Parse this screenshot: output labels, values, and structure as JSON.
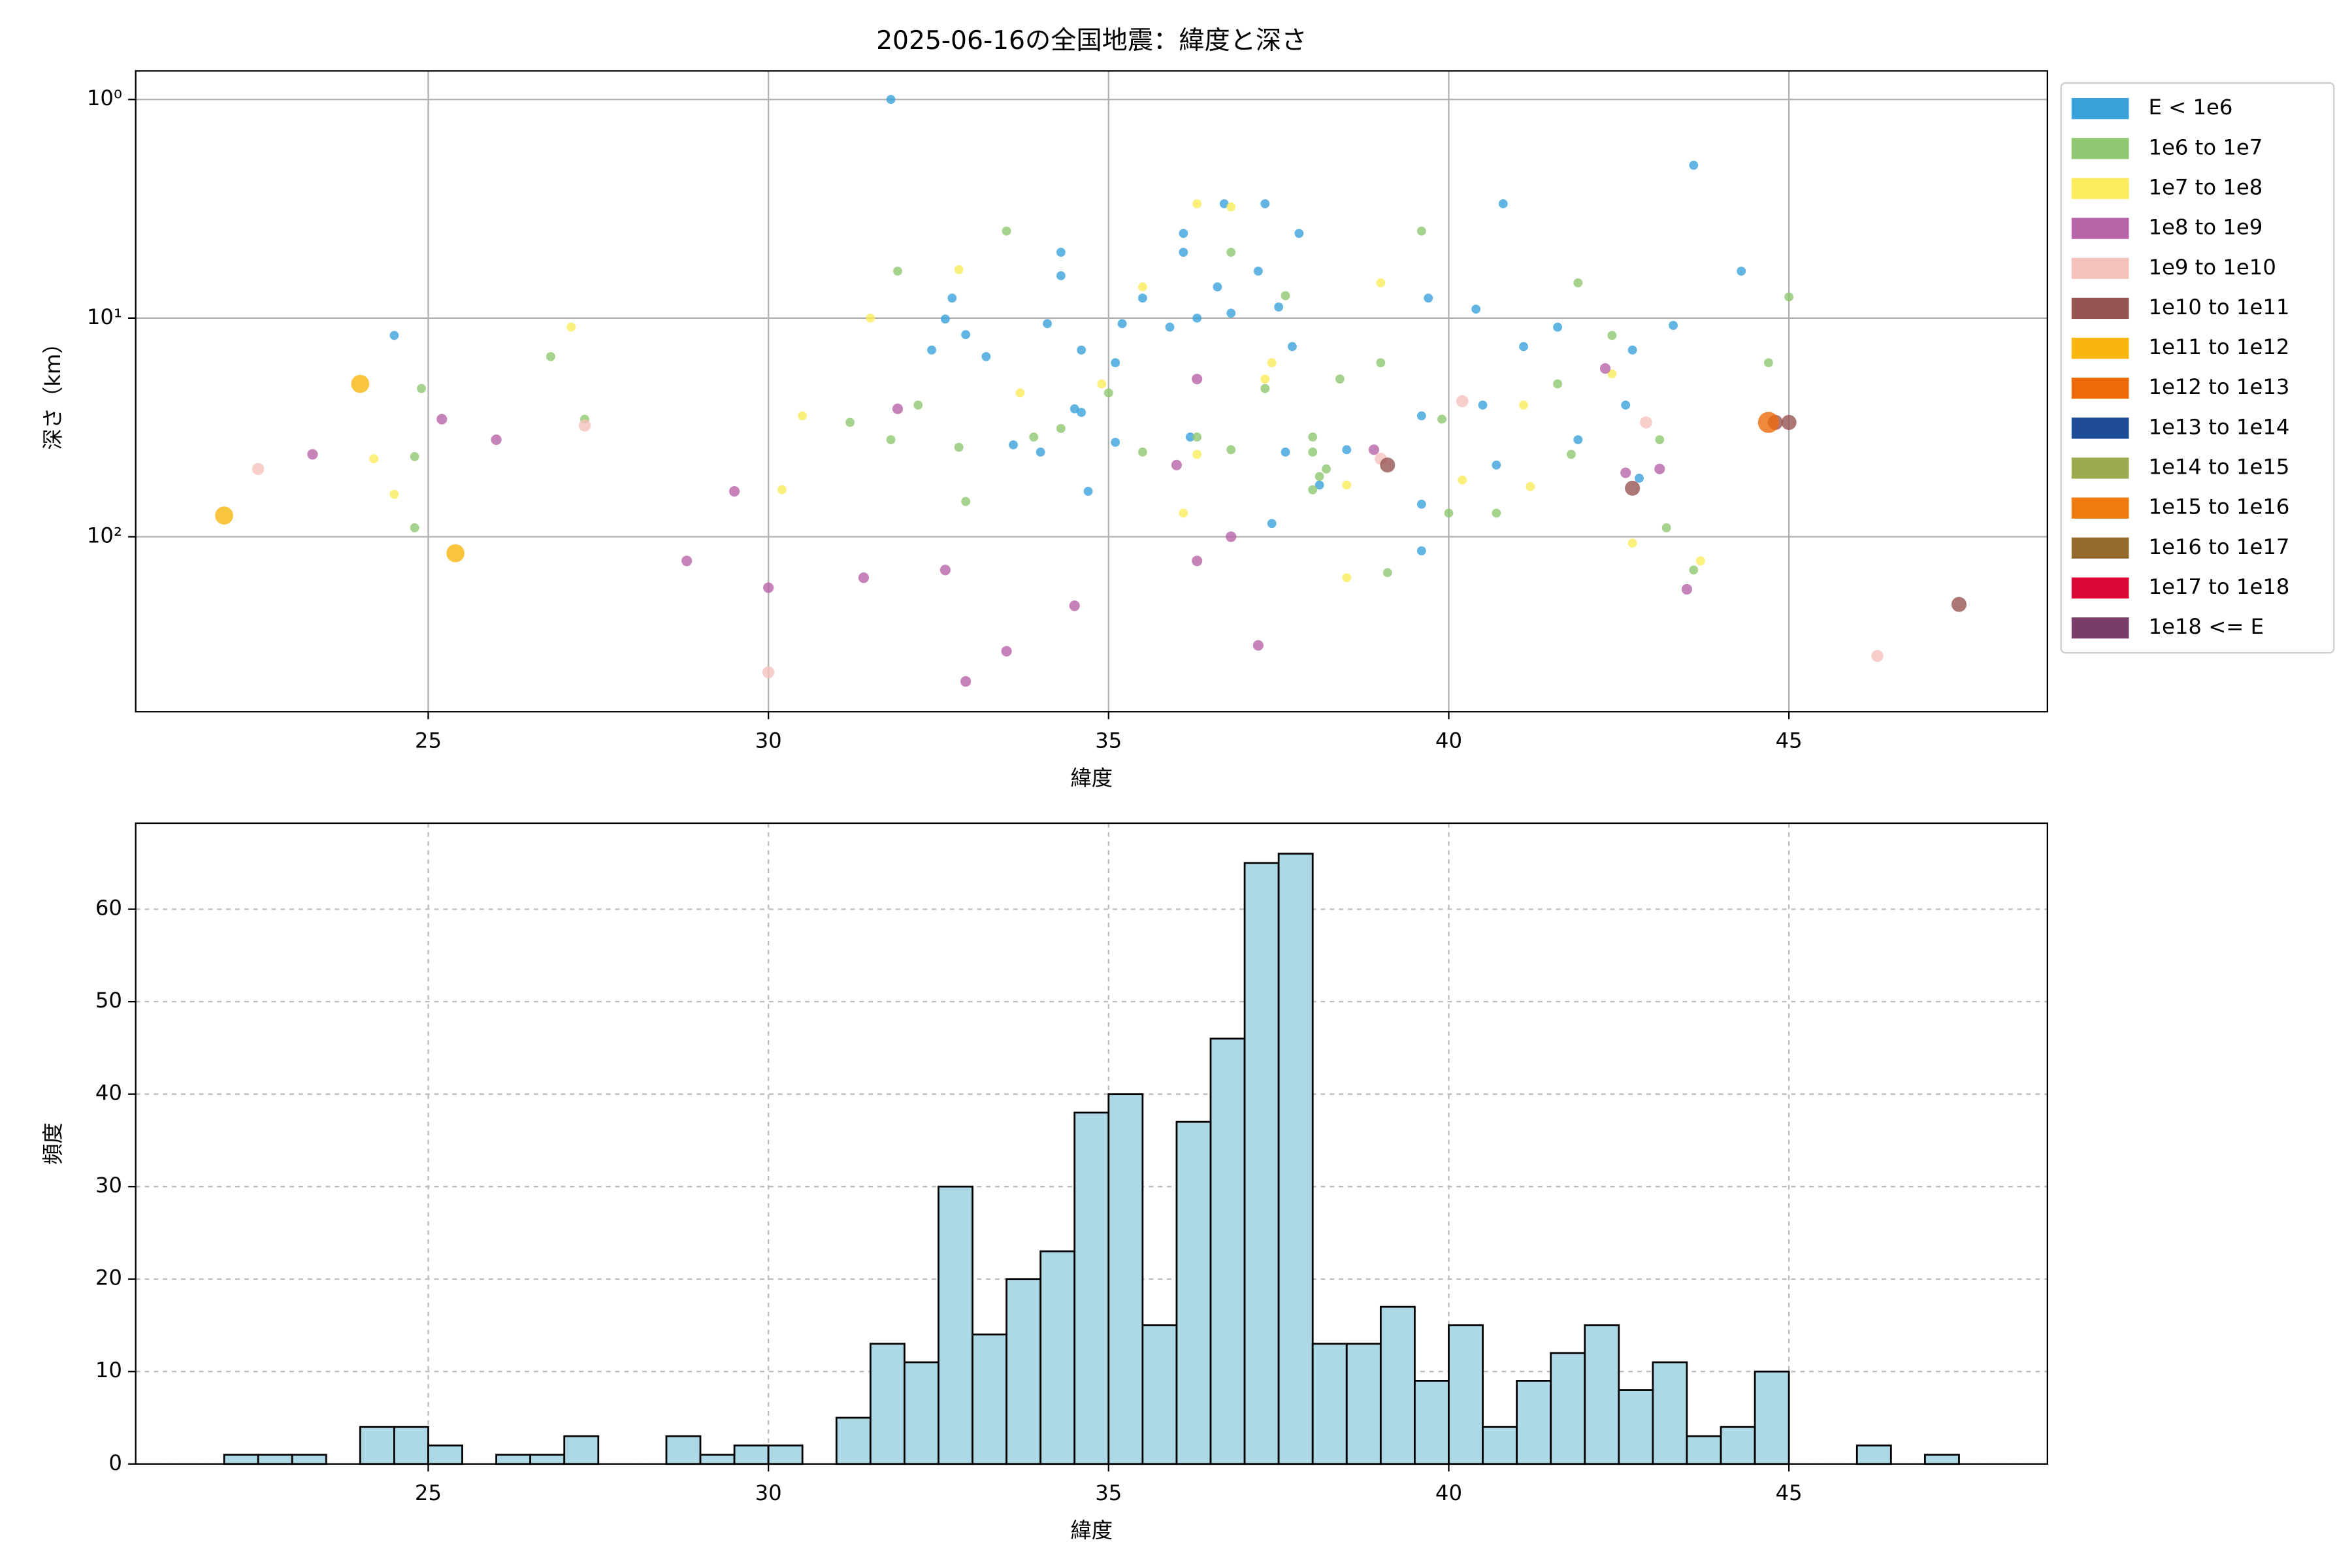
{
  "chart_data": [
    {
      "type": "scatter",
      "title": "2025-06-16の全国地震：緯度と深さ",
      "xlabel": "緯度",
      "ylabel": "深さ（km）",
      "xlim": [
        20.7,
        48.8
      ],
      "xticks": [
        25,
        30,
        35,
        40,
        45
      ],
      "ylim": [
        0.74,
        631
      ],
      "y_log": true,
      "y_inverted": true,
      "yticks": [
        {
          "value": 1,
          "label": "10⁰"
        },
        {
          "value": 10,
          "label": "10¹"
        },
        {
          "value": 100,
          "label": "10²"
        }
      ],
      "grid": true,
      "grid_style": "solid",
      "legend": "outside upper right",
      "series": [
        {
          "name": "E < 1e6",
          "color": "#3ba3dc",
          "size": 3,
          "x": [
            31.8,
            43.6,
            24.5,
            44.3,
            40.8,
            36.7,
            37.3,
            36.1,
            36.1,
            37.8,
            34.3,
            34.3,
            32.7,
            32.6,
            32.9,
            32.4,
            33.2,
            34.1,
            34.6,
            35.1,
            35.5,
            35.2,
            35.9,
            36.3,
            36.8,
            37.5,
            37.7,
            39.7,
            40.4,
            41.1,
            41.6,
            42.7,
            43.3,
            34.5,
            34.6,
            33.6,
            34.0,
            35.1,
            34.7,
            36.2,
            37.6,
            38.1,
            39.6,
            40.5,
            40.7,
            39.6,
            39.6,
            41.9,
            42.6,
            42.8,
            37.4,
            38.5,
            36.6,
            37.2
          ],
          "values": [
            1.0,
            2.0,
            12,
            6.1,
            3.0,
            3.0,
            3.0,
            4.1,
            5.0,
            4.1,
            5.0,
            6.4,
            8.1,
            10.1,
            11.9,
            14,
            15,
            10.6,
            14,
            16,
            8.1,
            10.6,
            11,
            10,
            9.5,
            8.9,
            13.5,
            8.1,
            9.1,
            13.5,
            11,
            14,
            10.8,
            26,
            27,
            38,
            41,
            37,
            62,
            35,
            41,
            58,
            28,
            25,
            47,
            71,
            116,
            36,
            25,
            54,
            87,
            40,
            7.2,
            6.1
          ]
        },
        {
          "name": "1e6 to 1e7",
          "color": "#8fc870",
          "size": 3,
          "x": [
            33.5,
            31.9,
            26.8,
            24.9,
            27.3,
            24.8,
            24.8,
            31.2,
            31.8,
            32.2,
            32.8,
            32.9,
            33.9,
            34.3,
            35.0,
            35.5,
            36.3,
            36.8,
            37.3,
            38.0,
            38.2,
            38.0,
            38.4,
            39.0,
            39.6,
            39.9,
            40.0,
            40.7,
            41.9,
            42.4,
            41.6,
            43.1,
            43.2,
            43.6,
            45.0,
            44.7,
            41.8,
            39.1,
            36.8,
            37.6,
            38.0,
            38.1
          ],
          "values": [
            4.0,
            6.1,
            15,
            21,
            29,
            43,
            91,
            30,
            36,
            25,
            39,
            69,
            35,
            32,
            22,
            41,
            35,
            40,
            21,
            35,
            49,
            61,
            19,
            16,
            4.0,
            29,
            78,
            78,
            6.9,
            12,
            20,
            36,
            91,
            142,
            8.0,
            16,
            42,
            146,
            5.0,
            7.9,
            41,
            53
          ]
        },
        {
          "name": "1e7 to 1e8",
          "color": "#fbec5d",
          "size": 3,
          "x": [
            27.1,
            24.2,
            24.5,
            31.5,
            30.5,
            30.2,
            32.8,
            33.7,
            34.9,
            35.5,
            36.3,
            36.8,
            36.3,
            36.1,
            37.3,
            38.5,
            38.5,
            39.0,
            40.2,
            41.2,
            41.1,
            42.4,
            42.7,
            43.7,
            37.4
          ],
          "values": [
            11,
            44,
            64,
            10,
            28,
            61,
            6.0,
            22,
            20,
            7.2,
            3.0,
            3.1,
            42,
            78,
            19,
            58,
            154,
            6.9,
            55,
            59,
            25,
            18,
            107,
            129,
            16
          ]
        },
        {
          "name": "1e8 to 1e9",
          "color": "#b864a8",
          "size": 3.5,
          "x": [
            23.3,
            25.2,
            26.0,
            28.8,
            29.5,
            30.0,
            31.4,
            32.6,
            33.5,
            34.5,
            36.0,
            36.3,
            36.3,
            36.8,
            37.2,
            38.9,
            42.3,
            42.6,
            43.1,
            43.5,
            32.9,
            31.9
          ],
          "values": [
            42,
            29,
            36,
            129,
            62,
            171,
            154,
            142,
            334,
            207,
            47,
            19,
            129,
            100,
            314,
            40,
            17,
            51,
            49,
            174,
            459,
            26
          ]
        },
        {
          "name": "1e9 to 1e10",
          "color": "#f5c2bb",
          "size": 4,
          "x": [
            22.5,
            27.3,
            30.0,
            46.3,
            40.2,
            42.9,
            39.0
          ],
          "values": [
            49,
            31,
            417,
            351,
            24,
            30,
            44
          ]
        },
        {
          "name": "1e10 to 1e11",
          "color": "#975451",
          "size": 5,
          "x": [
            47.5,
            42.7,
            39.1,
            44.8,
            45.0
          ],
          "values": [
            204,
            60,
            47,
            30,
            30
          ]
        },
        {
          "name": "1e11 to 1e12",
          "color": "#f8b60e",
          "size": 6,
          "x": [
            24.0,
            22.0,
            25.4
          ],
          "values": [
            20,
            80,
            119
          ]
        },
        {
          "name": "1e12 to 1e13",
          "color": "#ee6b0b",
          "size": 7,
          "x": [
            44.7
          ],
          "values": [
            30
          ]
        },
        {
          "name": "1e13 to 1e14",
          "color": "#1d4b94",
          "size": 6,
          "x": [],
          "values": []
        },
        {
          "name": "1e14 to 1e15",
          "color": "#9aac4f",
          "size": 6,
          "x": [],
          "values": []
        },
        {
          "name": "1e15 to 1e16",
          "color": "#ee7c0f",
          "size": 6,
          "x": [],
          "values": []
        },
        {
          "name": "1e16 to 1e17",
          "color": "#946b2d",
          "size": 6,
          "x": [],
          "values": []
        },
        {
          "name": "1e17 to 1e18",
          "color": "#dc0737",
          "size": 6,
          "x": [],
          "values": []
        },
        {
          "name": "1e18 <= E",
          "color": "#7a3d6a",
          "size": 6,
          "x": [],
          "values": []
        }
      ]
    },
    {
      "type": "histogram",
      "xlabel": "緯度",
      "ylabel": "頻度",
      "color": "#add8e6",
      "edgecolor": "#000000",
      "xlim": [
        20.7,
        48.8
      ],
      "xticks": [
        25,
        30,
        35,
        40,
        45
      ],
      "ylim": [
        0,
        69.3
      ],
      "yticks": [
        0,
        10,
        20,
        30,
        40,
        50,
        60
      ],
      "grid": true,
      "grid_style": "dashed",
      "bins": [
        22,
        22.5,
        23,
        23.5,
        24,
        24.5,
        25,
        25.5,
        26,
        26.5,
        27,
        27.5,
        28,
        28.5,
        29,
        29.5,
        30,
        30.5,
        31,
        31.5,
        32,
        32.5,
        33,
        33.5,
        34,
        34.5,
        35,
        35.5,
        36,
        36.5,
        37,
        37.5,
        38,
        38.5,
        39,
        39.5,
        40,
        40.5,
        41,
        41.5,
        42,
        42.5,
        43,
        43.5,
        44,
        44.5,
        45,
        45.5,
        46,
        46.5,
        47,
        47.5
      ],
      "values": [
        1,
        1,
        1,
        0,
        4,
        4,
        2,
        0,
        1,
        1,
        3,
        0,
        0,
        3,
        1,
        2,
        2,
        0,
        5,
        13,
        11,
        30,
        14,
        20,
        23,
        38,
        40,
        15,
        37,
        46,
        65,
        66,
        13,
        13,
        17,
        9,
        15,
        4,
        9,
        12,
        15,
        8,
        11,
        3,
        4,
        10,
        0,
        0,
        2,
        0,
        1
      ]
    }
  ]
}
